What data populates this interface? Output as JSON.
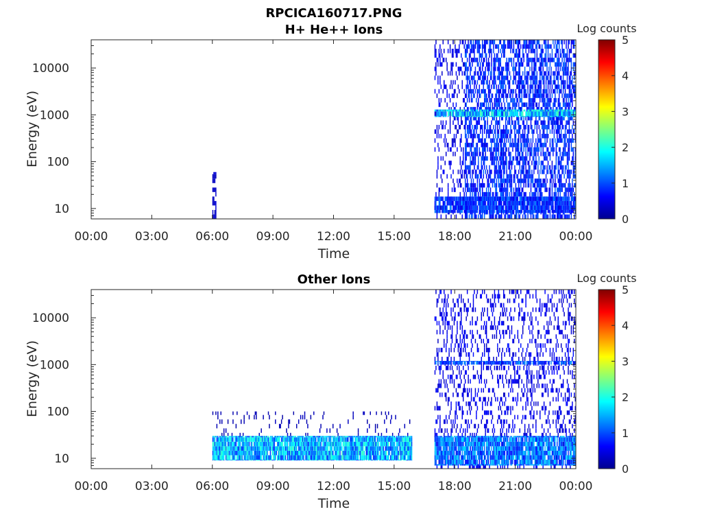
{
  "figure": {
    "title": "RPCICA160717.PNG"
  },
  "colorbar": {
    "label": "Log counts",
    "ticks": [
      "0",
      "1",
      "2",
      "3",
      "4",
      "5"
    ],
    "stops": [
      "#00008f",
      "#0000ff",
      "#0080ff",
      "#00ffff",
      "#80ff80",
      "#ffff00",
      "#ff8000",
      "#ff0000",
      "#800000"
    ]
  },
  "chart_data": [
    {
      "type": "heatmap",
      "title": "H+ He++ Ions",
      "xlabel": "Time",
      "ylabel": "Energy (eV)",
      "x_ticks": [
        "00:00",
        "03:00",
        "06:00",
        "09:00",
        "12:00",
        "15:00",
        "18:00",
        "21:00",
        "00:00"
      ],
      "xlim_hours": [
        0,
        24
      ],
      "y_scale": "log",
      "y_ticks": [
        "10",
        "100",
        "1000",
        "10000"
      ],
      "ylim_eV": [
        6,
        40000
      ],
      "zlim_log_counts": [
        0,
        5
      ],
      "colorbar_label": "Log counts",
      "regions": [
        {
          "t_start": 6.0,
          "t_end": 6.2,
          "e_min": 6,
          "e_max": 60,
          "log_counts": 0.3,
          "density": 0.6
        },
        {
          "t_start": 17.0,
          "t_end": 18.5,
          "e_min": 6,
          "e_max": 40000,
          "log_counts": 0.5,
          "density": 0.25
        },
        {
          "t_start": 17.0,
          "t_end": 24.0,
          "e_min": 8,
          "e_max": 18,
          "log_counts": 0.9,
          "density": 0.85
        },
        {
          "t_start": 18.5,
          "t_end": 24.0,
          "e_min": 6,
          "e_max": 40000,
          "log_counts": 0.8,
          "density": 0.6
        },
        {
          "t_start": 17.0,
          "t_end": 24.0,
          "e_min": 900,
          "e_max": 1300,
          "log_counts": 1.6,
          "density": 0.9
        }
      ]
    },
    {
      "type": "heatmap",
      "title": "Other Ions",
      "xlabel": "Time",
      "ylabel": "Energy (eV)",
      "x_ticks": [
        "00:00",
        "03:00",
        "06:00",
        "09:00",
        "12:00",
        "15:00",
        "18:00",
        "21:00",
        "00:00"
      ],
      "xlim_hours": [
        0,
        24
      ],
      "y_scale": "log",
      "y_ticks": [
        "10",
        "100",
        "1000",
        "10000"
      ],
      "ylim_eV": [
        6,
        40000
      ],
      "zlim_log_counts": [
        0,
        5
      ],
      "colorbar_label": "Log counts",
      "regions": [
        {
          "t_start": 6.0,
          "t_end": 15.9,
          "e_min": 9,
          "e_max": 30,
          "log_counts": 1.5,
          "density": 0.95
        },
        {
          "t_start": 6.0,
          "t_end": 15.9,
          "e_min": 30,
          "e_max": 100,
          "log_counts": 0.2,
          "density": 0.08
        },
        {
          "t_start": 17.0,
          "t_end": 24.0,
          "e_min": 6,
          "e_max": 40000,
          "log_counts": 0.5,
          "density": 0.25
        },
        {
          "t_start": 17.0,
          "t_end": 24.0,
          "e_min": 7,
          "e_max": 30,
          "log_counts": 1.2,
          "density": 0.9
        },
        {
          "t_start": 17.0,
          "t_end": 24.0,
          "e_min": 1000,
          "e_max": 1200,
          "log_counts": 1.0,
          "density": 0.8
        }
      ]
    }
  ]
}
